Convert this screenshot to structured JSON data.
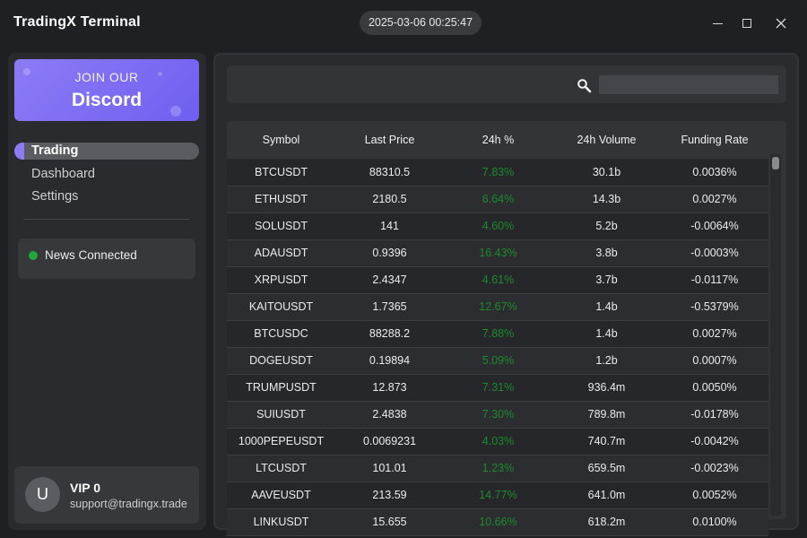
{
  "app": {
    "title": "TradingX Terminal",
    "clock": "2025-03-06 00:25:47"
  },
  "sidebar": {
    "discord": {
      "line1": "JOIN OUR",
      "line2": "Discord"
    },
    "nav": [
      {
        "label": "Trading",
        "active": true
      },
      {
        "label": "Dashboard",
        "active": false
      },
      {
        "label": "Settings",
        "active": false
      }
    ],
    "news": {
      "label": "News Connected",
      "status_color": "#22a83a"
    },
    "profile": {
      "initial": "U",
      "tier": "VIP 0",
      "email": "support@tradingx.trade"
    }
  },
  "search": {
    "placeholder": "",
    "value": ""
  },
  "table": {
    "columns": [
      "Symbol",
      "Last Price",
      "24h %",
      "24h Volume",
      "Funding Rate"
    ],
    "rows": [
      [
        "BTCUSDT",
        "88310.5",
        "7.83%",
        "30.1b",
        "0.0036%"
      ],
      [
        "ETHUSDT",
        "2180.5",
        "6.64%",
        "14.3b",
        "0.0027%"
      ],
      [
        "SOLUSDT",
        "141",
        "4.60%",
        "5.2b",
        "-0.0064%"
      ],
      [
        "ADAUSDT",
        "0.9396",
        "16.43%",
        "3.8b",
        "-0.0003%"
      ],
      [
        "XRPUSDT",
        "2.4347",
        "4.61%",
        "3.7b",
        "-0.0117%"
      ],
      [
        "KAITOUSDT",
        "1.7365",
        "12.67%",
        "1.4b",
        "-0.5379%"
      ],
      [
        "BTCUSDC",
        "88288.2",
        "7.88%",
        "1.4b",
        "0.0027%"
      ],
      [
        "DOGEUSDT",
        "0.19894",
        "5.09%",
        "1.2b",
        "0.0007%"
      ],
      [
        "TRUMPUSDT",
        "12.873",
        "7.31%",
        "936.4m",
        "0.0050%"
      ],
      [
        "SUIUSDT",
        "2.4838",
        "7.30%",
        "789.8m",
        "-0.0178%"
      ],
      [
        "1000PEPEUSDT",
        "0.0069231",
        "4.03%",
        "740.7m",
        "-0.0042%"
      ],
      [
        "LTCUSDT",
        "101.01",
        "1.23%",
        "659.5m",
        "-0.0023%"
      ],
      [
        "AAVEUSDT",
        "213.59",
        "14.77%",
        "641.0m",
        "0.0052%"
      ],
      [
        "LINKUSDT",
        "15.655",
        "10.66%",
        "618.2m",
        "0.0100%"
      ]
    ]
  },
  "colors": {
    "accent": "#8b7cf6",
    "positive": "#1d8a2c",
    "background": "#1f2023"
  },
  "icons": {
    "search": "magnifier-icon",
    "minimize": "minimize-icon",
    "maximize": "maximize-icon",
    "close": "close-icon"
  }
}
